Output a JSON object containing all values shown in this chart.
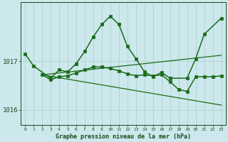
{
  "title": "Graphe pression niveau de la mer (hPa)",
  "background_color": "#cce8ec",
  "grid_color": "#aacccc",
  "line_color": "#1a6b1a",
  "text_color": "#1a4a1a",
  "xlim": [
    -0.5,
    23.5
  ],
  "ylim": [
    1015.7,
    1018.2
  ],
  "yticks": [
    1016,
    1017
  ],
  "xticks": [
    0,
    1,
    2,
    3,
    4,
    5,
    6,
    7,
    8,
    9,
    10,
    11,
    12,
    13,
    14,
    15,
    16,
    17,
    18,
    19,
    20,
    21,
    22,
    23
  ],
  "series": [
    {
      "x": [
        0,
        1,
        3,
        4,
        5,
        6,
        7,
        8,
        9,
        10,
        11,
        12,
        13,
        14,
        15,
        16,
        17,
        19,
        20,
        21,
        23
      ],
      "y": [
        1017.15,
        1016.9,
        1016.65,
        1016.82,
        1016.78,
        1016.95,
        1017.2,
        1017.5,
        1017.75,
        1017.92,
        1017.75,
        1017.3,
        1017.05,
        1016.78,
        1016.68,
        1016.77,
        1016.65,
        1016.65,
        1017.05,
        1017.55,
        1017.88
      ],
      "marker": "s",
      "markersize": 2.5,
      "linewidth": 1.1
    },
    {
      "x": [
        2,
        23
      ],
      "y": [
        1016.72,
        1017.12
      ],
      "marker": null,
      "markersize": 0,
      "linewidth": 0.9
    },
    {
      "x": [
        2,
        23
      ],
      "y": [
        1016.72,
        1016.1
      ],
      "marker": null,
      "markersize": 0,
      "linewidth": 0.9
    },
    {
      "x": [
        2,
        3,
        4,
        5,
        6,
        7,
        8,
        9,
        10,
        11,
        12,
        13,
        14,
        15,
        16,
        17,
        18,
        19,
        20,
        21,
        22,
        23
      ],
      "y": [
        1016.72,
        1016.62,
        1016.68,
        1016.7,
        1016.76,
        1016.82,
        1016.88,
        1016.88,
        1016.85,
        1016.8,
        1016.74,
        1016.7,
        1016.72,
        1016.7,
        1016.72,
        1016.58,
        1016.42,
        1016.38,
        1016.68,
        1016.68,
        1016.68,
        1016.7
      ],
      "marker": "s",
      "markersize": 2.5,
      "linewidth": 1.1
    }
  ]
}
